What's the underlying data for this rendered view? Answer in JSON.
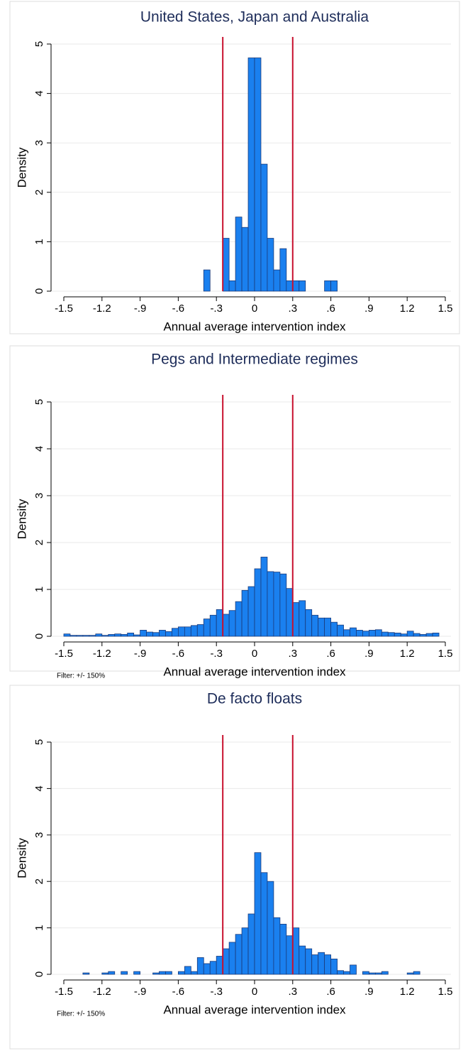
{
  "chart_data": [
    {
      "type": "histogram",
      "title": "United States, Japan and Australia",
      "xlabel": "Annual average intervention index",
      "ylabel": "Density",
      "bins": [
        -0.4,
        -0.35,
        -0.3,
        -0.25,
        -0.2,
        -0.15,
        -0.1,
        -0.05,
        0,
        0.05,
        0.1,
        0.15,
        0.2,
        0.25,
        0.3,
        0.35,
        0.4,
        0.45,
        0.5,
        0.55,
        0.6,
        0.65
      ],
      "values": [
        0.43,
        0,
        0,
        1.07,
        0.21,
        1.5,
        1.29,
        4.72,
        4.72,
        2.57,
        1.07,
        0.43,
        0.86,
        0.21,
        0.21,
        0.21,
        0,
        0,
        0,
        0.21,
        0.21
      ],
      "color": "#1a80ef",
      "edgecolor": "#1a3a7a",
      "vlines": [
        -0.25,
        0.3
      ],
      "vline_color": "#c8102e",
      "xlim": [
        -1.5,
        1.5
      ],
      "ylim": [
        0,
        5
      ],
      "grid": true,
      "xticks": [
        -1.5,
        -1.2,
        {
          "value": -0.9,
          "label": "-.9"
        },
        {
          "value": -0.6,
          "label": "-.6"
        },
        {
          "value": -0.3,
          "label": "-.3"
        },
        0,
        {
          "value": 0.3,
          "label": ".3"
        },
        {
          "value": 0.6,
          "label": ".6"
        },
        {
          "value": 0.9,
          "label": ".9"
        },
        1.2,
        1.5
      ],
      "yticks": [
        0,
        1,
        2,
        3,
        4,
        5
      ]
    },
    {
      "type": "histogram",
      "title": "Pegs and Intermediate regimes",
      "xlabel": "Annual average intervention index",
      "ylabel": "Density",
      "note": "Filter: +/- 150%",
      "bins": [
        -1.5,
        -1.45,
        -1.4,
        -1.35,
        -1.3,
        -1.25,
        -1.2,
        -1.15,
        -1.1,
        -1.05,
        -1.0,
        -0.95,
        -0.9,
        -0.85,
        -0.8,
        -0.75,
        -0.7,
        -0.65,
        -0.6,
        -0.55,
        -0.5,
        -0.45,
        -0.4,
        -0.35,
        -0.3,
        -0.25,
        -0.2,
        -0.15,
        -0.1,
        -0.05,
        0,
        0.05,
        0.1,
        0.15,
        0.2,
        0.25,
        0.3,
        0.35,
        0.4,
        0.45,
        0.5,
        0.55,
        0.6,
        0.65,
        0.7,
        0.75,
        0.8,
        0.85,
        0.9,
        0.95,
        1.0,
        1.05,
        1.1,
        1.15,
        1.2,
        1.25,
        1.3,
        1.35,
        1.4,
        1.45,
        1.5
      ],
      "values": [
        0.05,
        0.02,
        0.02,
        0.02,
        0.02,
        0.05,
        0.02,
        0.04,
        0.05,
        0.04,
        0.07,
        0.03,
        0.13,
        0.09,
        0.08,
        0.13,
        0.1,
        0.17,
        0.2,
        0.2,
        0.23,
        0.25,
        0.37,
        0.45,
        0.57,
        0.47,
        0.55,
        0.74,
        0.98,
        1.06,
        1.44,
        1.69,
        1.38,
        1.37,
        1.33,
        1.02,
        0.72,
        0.76,
        0.57,
        0.45,
        0.39,
        0.39,
        0.3,
        0.24,
        0.14,
        0.18,
        0.13,
        0.11,
        0.13,
        0.14,
        0.09,
        0.08,
        0.07,
        0.05,
        0.11,
        0.06,
        0.04,
        0.06,
        0.07,
        0
      ],
      "color": "#1a80ef",
      "edgecolor": "#1a3a7a",
      "vlines": [
        -0.25,
        0.3
      ],
      "vline_color": "#c8102e",
      "xlim": [
        -1.5,
        1.5
      ],
      "ylim": [
        0,
        5
      ],
      "grid": true,
      "xticks": [
        -1.5,
        -1.2,
        {
          "value": -0.9,
          "label": "-.9"
        },
        {
          "value": -0.6,
          "label": "-.6"
        },
        {
          "value": -0.3,
          "label": "-.3"
        },
        0,
        {
          "value": 0.3,
          "label": ".3"
        },
        {
          "value": 0.6,
          "label": ".6"
        },
        {
          "value": 0.9,
          "label": ".9"
        },
        1.2,
        1.5
      ],
      "yticks": [
        0,
        1,
        2,
        3,
        4,
        5
      ]
    },
    {
      "type": "histogram",
      "title": "De facto floats",
      "xlabel": "Annual average intervention index",
      "ylabel": "Density",
      "note": "Filter: +/- 150%",
      "bins": [
        -1.5,
        -1.45,
        -1.4,
        -1.35,
        -1.3,
        -1.25,
        -1.2,
        -1.15,
        -1.1,
        -1.05,
        -1.0,
        -0.95,
        -0.9,
        -0.85,
        -0.8,
        -0.75,
        -0.7,
        -0.65,
        -0.6,
        -0.55,
        -0.5,
        -0.45,
        -0.4,
        -0.35,
        -0.3,
        -0.25,
        -0.2,
        -0.15,
        -0.1,
        -0.05,
        0,
        0.05,
        0.1,
        0.15,
        0.2,
        0.25,
        0.3,
        0.35,
        0.4,
        0.45,
        0.5,
        0.55,
        0.6,
        0.65,
        0.7,
        0.75,
        0.8,
        0.85,
        0.9,
        0.95,
        1.0,
        1.05,
        1.1,
        1.15,
        1.2,
        1.25,
        1.3,
        1.35,
        1.4,
        1.45,
        1.5
      ],
      "values": [
        0,
        0,
        0,
        0.03,
        0,
        0,
        0.03,
        0.06,
        0,
        0.06,
        0,
        0.06,
        0,
        0,
        0.03,
        0.06,
        0.06,
        0,
        0.06,
        0.17,
        0.06,
        0.36,
        0.23,
        0.28,
        0.39,
        0.55,
        0.69,
        0.86,
        1.0,
        1.3,
        2.62,
        2.19,
        2.0,
        1.22,
        1.08,
        0.83,
        1.0,
        0.61,
        0.55,
        0.42,
        0.47,
        0.42,
        0.33,
        0.08,
        0.06,
        0.2,
        0,
        0.06,
        0.03,
        0.03,
        0.06,
        0,
        0,
        0,
        0.03,
        0.06,
        0,
        0,
        0,
        0
      ],
      "color": "#1a80ef",
      "edgecolor": "#1a3a7a",
      "vlines": [
        -0.25,
        0.3
      ],
      "vline_color": "#c8102e",
      "xlim": [
        -1.5,
        1.5
      ],
      "ylim": [
        0,
        5
      ],
      "grid": true,
      "xticks": [
        -1.5,
        -1.2,
        {
          "value": -0.9,
          "label": "-.9"
        },
        {
          "value": -0.6,
          "label": "-.6"
        },
        {
          "value": -0.3,
          "label": "-.3"
        },
        0,
        {
          "value": 0.3,
          "label": ".3"
        },
        {
          "value": 0.6,
          "label": ".6"
        },
        {
          "value": 0.9,
          "label": ".9"
        },
        1.2,
        1.5
      ],
      "yticks": [
        0,
        1,
        2,
        3,
        4,
        5
      ]
    }
  ]
}
